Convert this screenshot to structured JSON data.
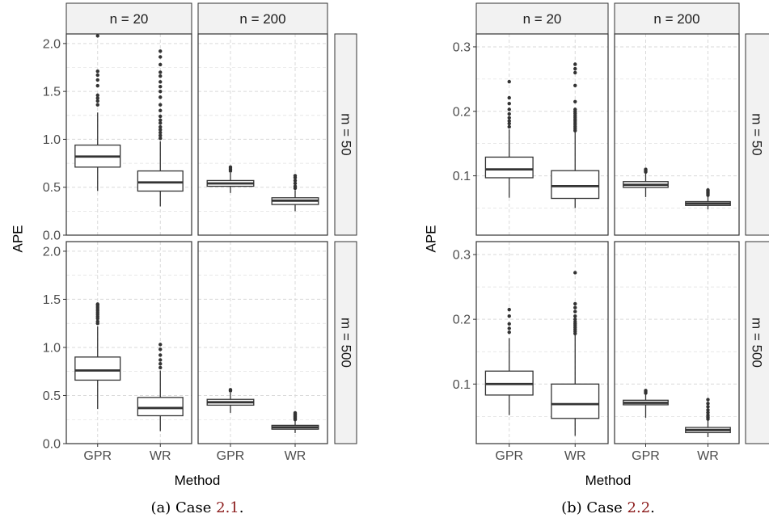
{
  "colors": {
    "panel_background": "#ffffff",
    "panel_border": "#333333",
    "strip_fill": "#f2f2f2",
    "grid_major": "#d9d9d9",
    "box_line": "#333333",
    "outlier": "#333333",
    "caption_ref": "#8b1a1a"
  },
  "chart_data": [
    {
      "type": "boxplot",
      "facet_cols": [
        "n = 20",
        "n = 200"
      ],
      "facet_rows": [
        "m = 50",
        "m = 500"
      ],
      "categories": [
        "GPR",
        "WR"
      ],
      "xlabel": "Method",
      "ylabel": "APE",
      "ylim": [
        0,
        2.1
      ],
      "yticks": [
        0.0,
        0.5,
        1.0,
        1.5,
        2.0
      ],
      "ytick_labels": [
        "0.0",
        "0.5",
        "1.0",
        "1.5",
        "2.0"
      ],
      "caption_prefix": "(a) Case ",
      "caption_ref": "2.1",
      "caption_suffix": ".",
      "panels": [
        {
          "row": 0,
          "col": 0,
          "boxes": [
            {
              "category": "GPR",
              "q1": 0.71,
              "median": 0.82,
              "q3": 0.94,
              "whisker_low": 0.46,
              "whisker_high": 1.28,
              "outliers": [
                1.36,
                1.4,
                1.43,
                1.46,
                1.56,
                1.62,
                1.67,
                1.71,
                2.08
              ]
            },
            {
              "category": "WR",
              "q1": 0.46,
              "median": 0.55,
              "q3": 0.67,
              "whisker_low": 0.3,
              "whisker_high": 0.98,
              "outliers": [
                1.01,
                1.04,
                1.07,
                1.1,
                1.13,
                1.17,
                1.2,
                1.24,
                1.3,
                1.36,
                1.44,
                1.5,
                1.55,
                1.6,
                1.66,
                1.7,
                1.78,
                1.86,
                1.92
              ]
            }
          ]
        },
        {
          "row": 0,
          "col": 1,
          "boxes": [
            {
              "category": "GPR",
              "q1": 0.51,
              "median": 0.54,
              "q3": 0.57,
              "whisker_low": 0.44,
              "whisker_high": 0.65,
              "outliers": [
                0.67,
                0.69,
                0.71
              ]
            },
            {
              "category": "WR",
              "q1": 0.32,
              "median": 0.36,
              "q3": 0.39,
              "whisker_low": 0.25,
              "whisker_high": 0.47,
              "outliers": [
                0.49,
                0.51,
                0.54,
                0.57,
                0.6,
                0.62
              ]
            }
          ]
        },
        {
          "row": 1,
          "col": 0,
          "boxes": [
            {
              "category": "GPR",
              "q1": 0.66,
              "median": 0.76,
              "q3": 0.9,
              "whisker_low": 0.36,
              "whisker_high": 1.22,
              "outliers": [
                1.25,
                1.27,
                1.3,
                1.32,
                1.34,
                1.36,
                1.38,
                1.4,
                1.42,
                1.44,
                1.45
              ]
            },
            {
              "category": "WR",
              "q1": 0.29,
              "median": 0.37,
              "q3": 0.48,
              "whisker_low": 0.13,
              "whisker_high": 0.76,
              "outliers": [
                0.79,
                0.83,
                0.87,
                0.92,
                0.98,
                1.03
              ]
            }
          ]
        },
        {
          "row": 1,
          "col": 1,
          "boxes": [
            {
              "category": "GPR",
              "q1": 0.4,
              "median": 0.43,
              "q3": 0.46,
              "whisker_low": 0.32,
              "whisker_high": 0.53,
              "outliers": [
                0.55,
                0.56
              ]
            },
            {
              "category": "WR",
              "q1": 0.15,
              "median": 0.17,
              "q3": 0.19,
              "whisker_low": 0.11,
              "whisker_high": 0.24,
              "outliers": [
                0.25,
                0.26,
                0.27,
                0.28,
                0.29,
                0.3,
                0.31,
                0.32
              ]
            }
          ]
        }
      ]
    },
    {
      "type": "boxplot",
      "facet_cols": [
        "n = 20",
        "n = 200"
      ],
      "facet_rows": [
        "m = 50",
        "m = 500"
      ],
      "categories": [
        "GPR",
        "WR"
      ],
      "xlabel": "Method",
      "ylabel": "APE",
      "ylim": [
        0.008,
        0.32
      ],
      "yticks": [
        0.1,
        0.2,
        0.3
      ],
      "ytick_labels": [
        "0.1",
        "0.2",
        "0.3"
      ],
      "caption_prefix": "(b) Case ",
      "caption_ref": "2.2",
      "caption_suffix": ".",
      "panels": [
        {
          "row": 0,
          "col": 0,
          "boxes": [
            {
              "category": "GPR",
              "q1": 0.097,
              "median": 0.11,
              "q3": 0.129,
              "whisker_low": 0.066,
              "whisker_high": 0.172,
              "outliers": [
                0.176,
                0.181,
                0.185,
                0.19,
                0.196,
                0.203,
                0.212,
                0.221,
                0.246
              ]
            },
            {
              "category": "WR",
              "q1": 0.065,
              "median": 0.084,
              "q3": 0.108,
              "whisker_low": 0.05,
              "whisker_high": 0.168,
              "outliers": [
                0.17,
                0.173,
                0.176,
                0.179,
                0.182,
                0.185,
                0.188,
                0.191,
                0.194,
                0.197,
                0.2,
                0.203,
                0.215,
                0.24,
                0.26,
                0.266,
                0.273
              ]
            }
          ]
        },
        {
          "row": 0,
          "col": 1,
          "boxes": [
            {
              "category": "GPR",
              "q1": 0.082,
              "median": 0.086,
              "q3": 0.091,
              "whisker_low": 0.067,
              "whisker_high": 0.104,
              "outliers": [
                0.106,
                0.108,
                0.11
              ]
            },
            {
              "category": "WR",
              "q1": 0.054,
              "median": 0.057,
              "q3": 0.06,
              "whisker_low": 0.048,
              "whisker_high": 0.068,
              "outliers": [
                0.07,
                0.072,
                0.074,
                0.076,
                0.078
              ]
            }
          ]
        },
        {
          "row": 1,
          "col": 0,
          "boxes": [
            {
              "category": "GPR",
              "q1": 0.083,
              "median": 0.1,
              "q3": 0.12,
              "whisker_low": 0.052,
              "whisker_high": 0.171,
              "outliers": [
                0.18,
                0.186,
                0.193,
                0.205,
                0.215
              ]
            },
            {
              "category": "WR",
              "q1": 0.047,
              "median": 0.069,
              "q3": 0.1,
              "whisker_low": 0.02,
              "whisker_high": 0.176,
              "outliers": [
                0.178,
                0.181,
                0.184,
                0.187,
                0.19,
                0.193,
                0.196,
                0.2,
                0.205,
                0.212,
                0.218,
                0.224,
                0.272
              ]
            }
          ]
        },
        {
          "row": 1,
          "col": 1,
          "boxes": [
            {
              "category": "GPR",
              "q1": 0.068,
              "median": 0.071,
              "q3": 0.075,
              "whisker_low": 0.048,
              "whisker_high": 0.084,
              "outliers": [
                0.086,
                0.088,
                0.09
              ]
            },
            {
              "category": "WR",
              "q1": 0.025,
              "median": 0.029,
              "q3": 0.033,
              "whisker_low": 0.018,
              "whisker_high": 0.044,
              "outliers": [
                0.046,
                0.049,
                0.052,
                0.056,
                0.06,
                0.065,
                0.07,
                0.076
              ]
            }
          ]
        }
      ]
    }
  ]
}
